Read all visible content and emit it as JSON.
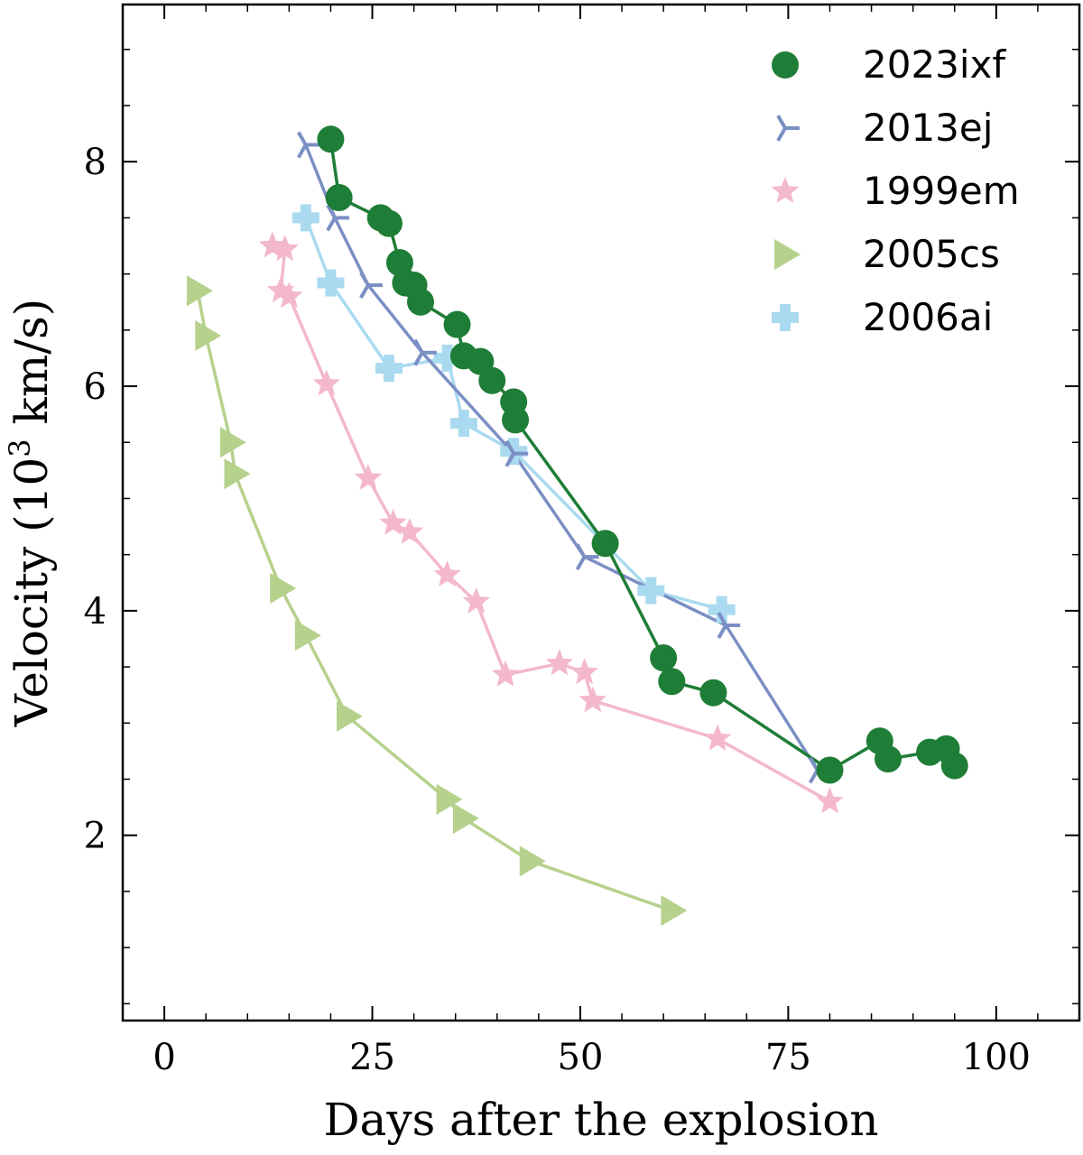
{
  "chart_data": {
    "type": "line",
    "title": "",
    "xlabel": "Days after the explosion",
    "ylabel": "Velocity (10³ km/s)",
    "xlim": [
      -5,
      110
    ],
    "ylim": [
      0.35,
      9.4
    ],
    "xticks": [
      0,
      25,
      50,
      75,
      100
    ],
    "yticks": [
      2,
      4,
      6,
      8
    ],
    "grid": false,
    "legend_position": "top-right",
    "series": [
      {
        "name": "2023ixf",
        "color": "#1e7d36",
        "marker": "circle",
        "x": [
          20.0,
          21.0,
          26.0,
          27.0,
          28.3,
          29.0,
          30.0,
          30.8,
          35.2,
          36.0,
          38.0,
          39.4,
          42.0,
          42.2,
          53.0,
          60.0,
          61.0,
          66.0,
          80.0,
          86.0,
          87.0,
          92.0,
          94.0,
          95.0
        ],
        "y": [
          8.2,
          7.68,
          7.5,
          7.45,
          7.1,
          6.92,
          6.9,
          6.75,
          6.55,
          6.27,
          6.22,
          6.05,
          5.86,
          5.7,
          4.6,
          3.58,
          3.37,
          3.27,
          2.58,
          2.84,
          2.68,
          2.74,
          2.77,
          2.62
        ]
      },
      {
        "name": "2013ej",
        "color": "#7b8fc4",
        "marker": "tri",
        "x": [
          17.0,
          20.5,
          24.5,
          31.0,
          42.0,
          50.5,
          67.5,
          78.5
        ],
        "y": [
          8.15,
          7.5,
          6.9,
          6.3,
          5.4,
          4.48,
          3.87,
          2.58
        ]
      },
      {
        "name": "1999em",
        "color": "#f4b8cb",
        "marker": "star",
        "x": [
          13.0,
          14.5,
          14.0,
          15.0,
          19.5,
          24.5,
          27.5,
          29.5,
          34.0,
          37.5,
          41.0,
          47.5,
          50.5,
          51.5,
          66.5,
          80.0
        ],
        "y": [
          7.25,
          7.22,
          6.85,
          6.8,
          6.02,
          5.18,
          4.78,
          4.7,
          4.32,
          4.08,
          3.43,
          3.53,
          3.45,
          3.2,
          2.86,
          2.3
        ]
      },
      {
        "name": "2005cs",
        "color": "#b5d18c",
        "marker": "triangle-right",
        "x": [
          4.0,
          5.0,
          8.0,
          8.5,
          14.0,
          17.0,
          22.0,
          34.0,
          36.0,
          44.0,
          61.0
        ],
        "y": [
          6.85,
          6.45,
          5.5,
          5.22,
          4.2,
          3.78,
          3.06,
          2.32,
          2.15,
          1.77,
          1.33
        ]
      },
      {
        "name": "2006ai",
        "color": "#a9daf0",
        "marker": "plus",
        "x": [
          17.0,
          20.0,
          27.0,
          34.0,
          36.0,
          42.0,
          58.5,
          67.0
        ],
        "y": [
          7.5,
          6.92,
          6.16,
          6.25,
          5.67,
          5.42,
          4.18,
          4.01
        ]
      }
    ]
  }
}
